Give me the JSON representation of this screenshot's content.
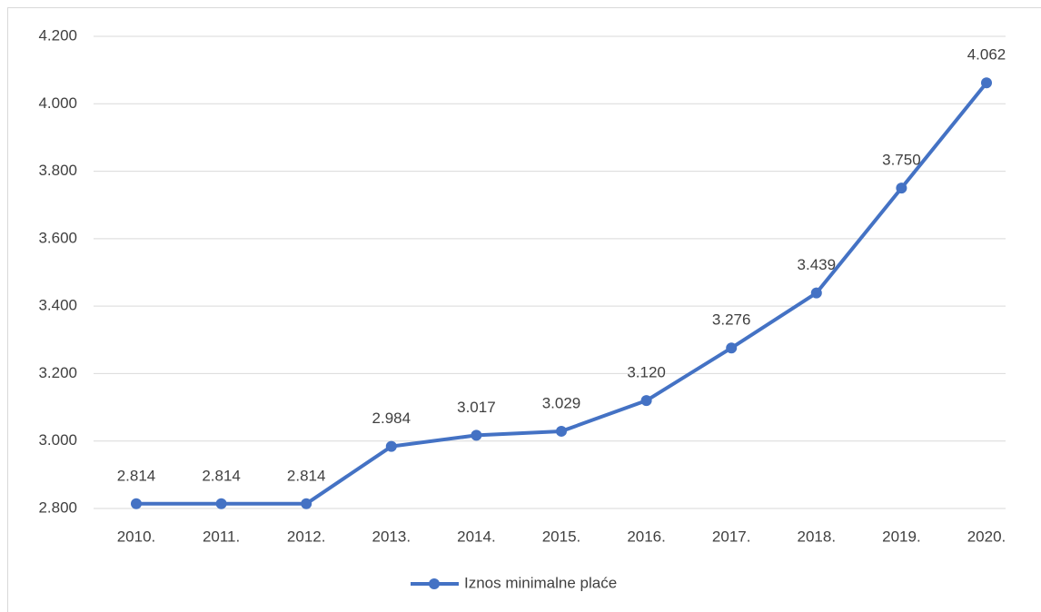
{
  "chart_data": {
    "type": "line",
    "categories": [
      "2010.",
      "2011.",
      "2012.",
      "2013.",
      "2014.",
      "2015.",
      "2016.",
      "2017.",
      "2018.",
      "2019.",
      "2020."
    ],
    "series": [
      {
        "name": "Iznos minimalne plaće",
        "color": "#4472c4",
        "values": [
          2814,
          2814,
          2814,
          2984,
          3017,
          3029,
          3120,
          3276,
          3439,
          3750,
          4062
        ],
        "value_labels": [
          "2.814",
          "2.814",
          "2.814",
          "2.984",
          "3.017",
          "3.029",
          "3.120",
          "3.276",
          "3.439",
          "3.750",
          "4.062"
        ]
      }
    ],
    "ylim": [
      2800,
      4200
    ],
    "yticks": [
      {
        "value": 2800,
        "label": "2.800"
      },
      {
        "value": 3000,
        "label": "3.000"
      },
      {
        "value": 3200,
        "label": "3.200"
      },
      {
        "value": 3400,
        "label": "3.400"
      },
      {
        "value": 3600,
        "label": "3.600"
      },
      {
        "value": 3800,
        "label": "3.800"
      },
      {
        "value": 4000,
        "label": "4.000"
      },
      {
        "value": 4200,
        "label": "4.200"
      }
    ],
    "grid": true,
    "legend": "bottom"
  }
}
